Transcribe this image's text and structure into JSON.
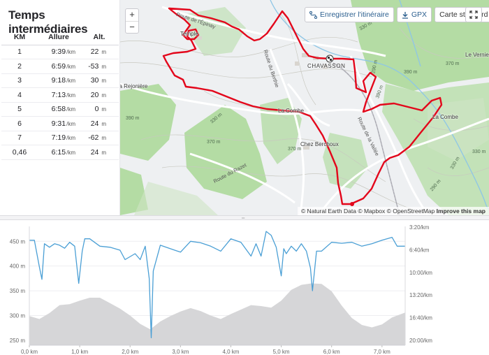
{
  "splits": {
    "title": "Temps intermédiaires",
    "headers": {
      "km": "KM",
      "pace": "Allure",
      "alt": "Alt."
    },
    "pace_unit": "/km",
    "alt_unit": "m",
    "rows": [
      {
        "km": "1",
        "pace": "9:39",
        "alt": "22"
      },
      {
        "km": "2",
        "pace": "6:59",
        "alt": "-53"
      },
      {
        "km": "3",
        "pace": "9:18",
        "alt": "30"
      },
      {
        "km": "4",
        "pace": "7:13",
        "alt": "20"
      },
      {
        "km": "5",
        "pace": "6:58",
        "alt": "0"
      },
      {
        "km": "6",
        "pace": "9:31",
        "alt": "24"
      },
      {
        "km": "7",
        "pace": "7:19",
        "alt": "-62"
      },
      {
        "km": "0,46",
        "pace": "6:15",
        "alt": "24"
      }
    ]
  },
  "map": {
    "zoom_in": "+",
    "zoom_out": "−",
    "export_route_label": "Enregistrer l'itinéraire",
    "gpx_label": "GPX",
    "map_style_label": "Carte standard",
    "route_color": "#e3061b",
    "place_labels": {
      "temple": "Temple",
      "chavasson": "CHAVASSON",
      "rejoniere": "La Rejonière",
      "lacombe_center": "La Combe",
      "lacombe_east": "La Combe",
      "berchoux": "Chez Berchoux",
      "vernier": "Le Vernier"
    },
    "road_labels": {
      "berthie": "Route du Berthie",
      "razet": "Route du Razet",
      "vallee": "Route de la Vallée",
      "grand": "Route de l'Épinay"
    },
    "contours": {
      "c1": "330 m",
      "c2": "370 m",
      "c3": "390 m",
      "c4": "330 m",
      "c5": "370 m",
      "c6": "390 m",
      "c7": "370 m",
      "c8": "290 m",
      "c9": "330 m",
      "c10": "330 m",
      "c11": "390 m",
      "c12": "290 m"
    },
    "attribution": {
      "natural_earth": "© Natural Earth Data",
      "mapbox": "© Mapbox",
      "osm": "© OpenStreetMap",
      "improve": "Improve this map"
    }
  },
  "chart_data": {
    "type": "area",
    "x_unit": "km",
    "xlim": [
      0,
      7.46
    ],
    "x_ticks": [
      "0,0 km",
      "1,0 km",
      "2,0 km",
      "3,0 km",
      "4,0 km",
      "5,0 km",
      "6,0 km",
      "7,0 km"
    ],
    "y_ticks": [
      "450 m",
      "400 m",
      "350 m",
      "300 m",
      "250 m"
    ],
    "ylim": [
      240,
      480
    ],
    "y2_ticks": [
      "3:20/km",
      "6:40/km",
      "10:00/km",
      "13:20/km",
      "16:40/km",
      "20:00/km"
    ],
    "y2_ticks_seconds_per_km": [
      200,
      400,
      600,
      800,
      1000,
      1200
    ],
    "series": [
      {
        "kind": "elevation",
        "fill": "#d6d6d8",
        "x": [
          0,
          0.2,
          0.4,
          0.6,
          0.8,
          1.0,
          1.2,
          1.4,
          1.6,
          1.8,
          2.0,
          2.2,
          2.4,
          2.6,
          2.8,
          3.0,
          3.2,
          3.4,
          3.6,
          3.8,
          4.0,
          4.2,
          4.4,
          4.6,
          4.8,
          5.0,
          5.2,
          5.4,
          5.6,
          5.8,
          6.0,
          6.2,
          6.4,
          6.6,
          6.8,
          7.0,
          7.2,
          7.46
        ],
        "y": [
          299,
          293,
          305,
          321,
          323,
          330,
          336,
          336,
          325,
          314,
          300,
          283,
          272,
          288,
          299,
          308,
          315,
          309,
          300,
          293,
          303,
          312,
          321,
          319,
          316,
          330,
          352,
          362,
          365,
          364,
          349,
          320,
          295,
          281,
          276,
          282,
          296,
          306
        ]
      },
      {
        "kind": "pace",
        "color": "#4a9fd5",
        "x": [
          0,
          0.1,
          0.2,
          0.25,
          0.3,
          0.4,
          0.5,
          0.6,
          0.7,
          0.8,
          0.9,
          0.98,
          1.05,
          1.1,
          1.2,
          1.4,
          1.6,
          1.8,
          1.9,
          2.1,
          2.2,
          2.3,
          2.38,
          2.42,
          2.46,
          2.6,
          2.8,
          3.0,
          3.2,
          3.4,
          3.6,
          3.8,
          4.0,
          4.2,
          4.4,
          4.5,
          4.6,
          4.7,
          4.8,
          4.9,
          5.0,
          5.05,
          5.1,
          5.2,
          5.3,
          5.4,
          5.5,
          5.58,
          5.62,
          5.7,
          5.8,
          6.0,
          6.2,
          6.4,
          6.6,
          6.8,
          7.0,
          7.2,
          7.3,
          7.46
        ],
        "y": [
          452,
          452,
          398,
          373,
          445,
          438,
          445,
          442,
          436,
          448,
          440,
          365,
          430,
          455,
          455,
          440,
          438,
          432,
          413,
          425,
          413,
          440,
          375,
          255,
          390,
          442,
          435,
          428,
          450,
          447,
          440,
          430,
          455,
          448,
          420,
          445,
          420,
          470,
          462,
          438,
          380,
          435,
          425,
          440,
          430,
          445,
          430,
          396,
          350,
          430,
          430,
          448,
          446,
          448,
          440,
          445,
          452,
          458,
          440,
          440
        ]
      }
    ]
  }
}
